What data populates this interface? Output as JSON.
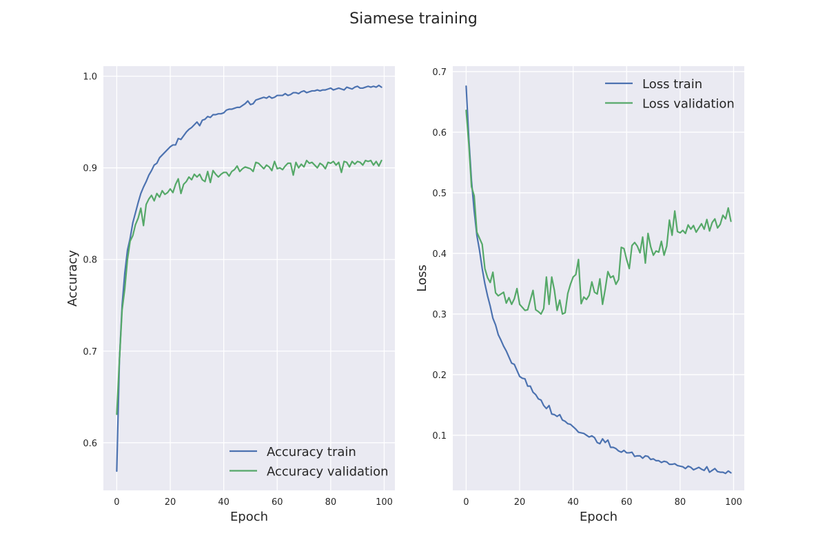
{
  "title": "Siamese training",
  "colors": {
    "train": "#4c72b0",
    "validation": "#55a868",
    "plot_bg": "#eaeaf2"
  },
  "chart_data": [
    {
      "type": "line",
      "xlabel": "Epoch",
      "ylabel": "Accuracy",
      "xlim": [
        -5,
        104
      ],
      "ylim": [
        0.548,
        1.011
      ],
      "xticks": [
        0,
        20,
        40,
        60,
        80,
        100
      ],
      "yticks": [
        0.6,
        0.7,
        0.8,
        0.9,
        1.0
      ],
      "ytick_labels": [
        "0.6",
        "0.7",
        "0.8",
        "0.9",
        "1.0"
      ],
      "grid": true,
      "legend": "lower-right",
      "series": [
        {
          "name": "Accuracy train",
          "color": "#4c72b0",
          "values": [
            0.569,
            0.69,
            0.75,
            0.785,
            0.81,
            0.823,
            0.84,
            0.851,
            0.862,
            0.872,
            0.879,
            0.885,
            0.892,
            0.897,
            0.903,
            0.905,
            0.911,
            0.914,
            0.917,
            0.92,
            0.923,
            0.925,
            0.925,
            0.932,
            0.931,
            0.935,
            0.939,
            0.942,
            0.944,
            0.947,
            0.95,
            0.946,
            0.952,
            0.953,
            0.956,
            0.955,
            0.958,
            0.958,
            0.959,
            0.959,
            0.96,
            0.963,
            0.964,
            0.964,
            0.965,
            0.966,
            0.966,
            0.968,
            0.97,
            0.973,
            0.969,
            0.97,
            0.974,
            0.975,
            0.976,
            0.977,
            0.976,
            0.978,
            0.976,
            0.977,
            0.979,
            0.979,
            0.979,
            0.981,
            0.979,
            0.98,
            0.982,
            0.982,
            0.981,
            0.983,
            0.984,
            0.982,
            0.983,
            0.984,
            0.984,
            0.985,
            0.984,
            0.985,
            0.985,
            0.986,
            0.987,
            0.985,
            0.986,
            0.987,
            0.986,
            0.985,
            0.988,
            0.987,
            0.986,
            0.988,
            0.989,
            0.987,
            0.987,
            0.988,
            0.989,
            0.988,
            0.989,
            0.988,
            0.99,
            0.988
          ]
        },
        {
          "name": "Accuracy validation",
          "color": "#55a868",
          "values": [
            0.631,
            0.69,
            0.745,
            0.768,
            0.8,
            0.82,
            0.826,
            0.838,
            0.845,
            0.856,
            0.837,
            0.86,
            0.866,
            0.87,
            0.864,
            0.872,
            0.868,
            0.875,
            0.871,
            0.873,
            0.877,
            0.873,
            0.882,
            0.888,
            0.872,
            0.882,
            0.885,
            0.89,
            0.887,
            0.893,
            0.89,
            0.893,
            0.887,
            0.885,
            0.896,
            0.884,
            0.897,
            0.893,
            0.89,
            0.893,
            0.895,
            0.895,
            0.891,
            0.896,
            0.898,
            0.902,
            0.896,
            0.899,
            0.901,
            0.9,
            0.899,
            0.896,
            0.906,
            0.905,
            0.902,
            0.899,
            0.903,
            0.901,
            0.897,
            0.907,
            0.899,
            0.9,
            0.898,
            0.902,
            0.905,
            0.905,
            0.892,
            0.906,
            0.9,
            0.904,
            0.901,
            0.908,
            0.905,
            0.906,
            0.903,
            0.9,
            0.905,
            0.903,
            0.899,
            0.906,
            0.905,
            0.907,
            0.903,
            0.906,
            0.895,
            0.907,
            0.906,
            0.901,
            0.907,
            0.904,
            0.907,
            0.906,
            0.903,
            0.908,
            0.907,
            0.908,
            0.903,
            0.907,
            0.902,
            0.908
          ]
        }
      ]
    },
    {
      "type": "line",
      "xlabel": "Epoch",
      "ylabel": "Loss",
      "xlim": [
        -5,
        104
      ],
      "ylim": [
        0.009,
        0.709
      ],
      "xticks": [
        0,
        20,
        40,
        60,
        80,
        100
      ],
      "yticks": [
        0.1,
        0.2,
        0.3,
        0.4,
        0.5,
        0.6,
        0.7
      ],
      "ytick_labels": [
        "0.1",
        "0.2",
        "0.3",
        "0.4",
        "0.5",
        "0.6",
        "0.7"
      ],
      "grid": true,
      "legend": "upper-right",
      "series": [
        {
          "name": "Loss train",
          "color": "#4c72b0",
          "values": [
            0.676,
            0.59,
            0.52,
            0.47,
            0.43,
            0.405,
            0.375,
            0.35,
            0.33,
            0.313,
            0.293,
            0.282,
            0.266,
            0.257,
            0.247,
            0.239,
            0.229,
            0.219,
            0.217,
            0.207,
            0.197,
            0.194,
            0.193,
            0.181,
            0.181,
            0.171,
            0.167,
            0.16,
            0.158,
            0.149,
            0.144,
            0.149,
            0.135,
            0.134,
            0.131,
            0.134,
            0.125,
            0.123,
            0.119,
            0.118,
            0.114,
            0.11,
            0.105,
            0.104,
            0.103,
            0.1,
            0.097,
            0.099,
            0.096,
            0.088,
            0.086,
            0.094,
            0.088,
            0.092,
            0.08,
            0.08,
            0.078,
            0.074,
            0.072,
            0.075,
            0.071,
            0.071,
            0.072,
            0.065,
            0.066,
            0.066,
            0.062,
            0.066,
            0.065,
            0.06,
            0.061,
            0.058,
            0.058,
            0.055,
            0.057,
            0.056,
            0.052,
            0.052,
            0.053,
            0.05,
            0.049,
            0.048,
            0.045,
            0.049,
            0.047,
            0.043,
            0.045,
            0.047,
            0.044,
            0.042,
            0.048,
            0.039,
            0.042,
            0.045,
            0.04,
            0.039,
            0.039,
            0.037,
            0.041,
            0.038
          ]
        },
        {
          "name": "Loss validation",
          "color": "#55a868",
          "values": [
            0.636,
            0.58,
            0.51,
            0.495,
            0.435,
            0.425,
            0.415,
            0.375,
            0.36,
            0.352,
            0.369,
            0.335,
            0.33,
            0.333,
            0.336,
            0.318,
            0.327,
            0.316,
            0.325,
            0.342,
            0.316,
            0.311,
            0.306,
            0.307,
            0.323,
            0.339,
            0.307,
            0.304,
            0.3,
            0.309,
            0.361,
            0.316,
            0.361,
            0.339,
            0.306,
            0.323,
            0.3,
            0.302,
            0.334,
            0.349,
            0.361,
            0.365,
            0.39,
            0.317,
            0.328,
            0.324,
            0.331,
            0.353,
            0.336,
            0.333,
            0.358,
            0.316,
            0.341,
            0.37,
            0.36,
            0.363,
            0.349,
            0.357,
            0.41,
            0.408,
            0.39,
            0.375,
            0.413,
            0.418,
            0.412,
            0.401,
            0.427,
            0.384,
            0.433,
            0.411,
            0.397,
            0.404,
            0.402,
            0.42,
            0.397,
            0.412,
            0.455,
            0.43,
            0.47,
            0.436,
            0.434,
            0.438,
            0.433,
            0.447,
            0.44,
            0.446,
            0.435,
            0.442,
            0.449,
            0.44,
            0.456,
            0.437,
            0.451,
            0.457,
            0.442,
            0.448,
            0.463,
            0.457,
            0.475,
            0.453
          ]
        }
      ]
    }
  ]
}
